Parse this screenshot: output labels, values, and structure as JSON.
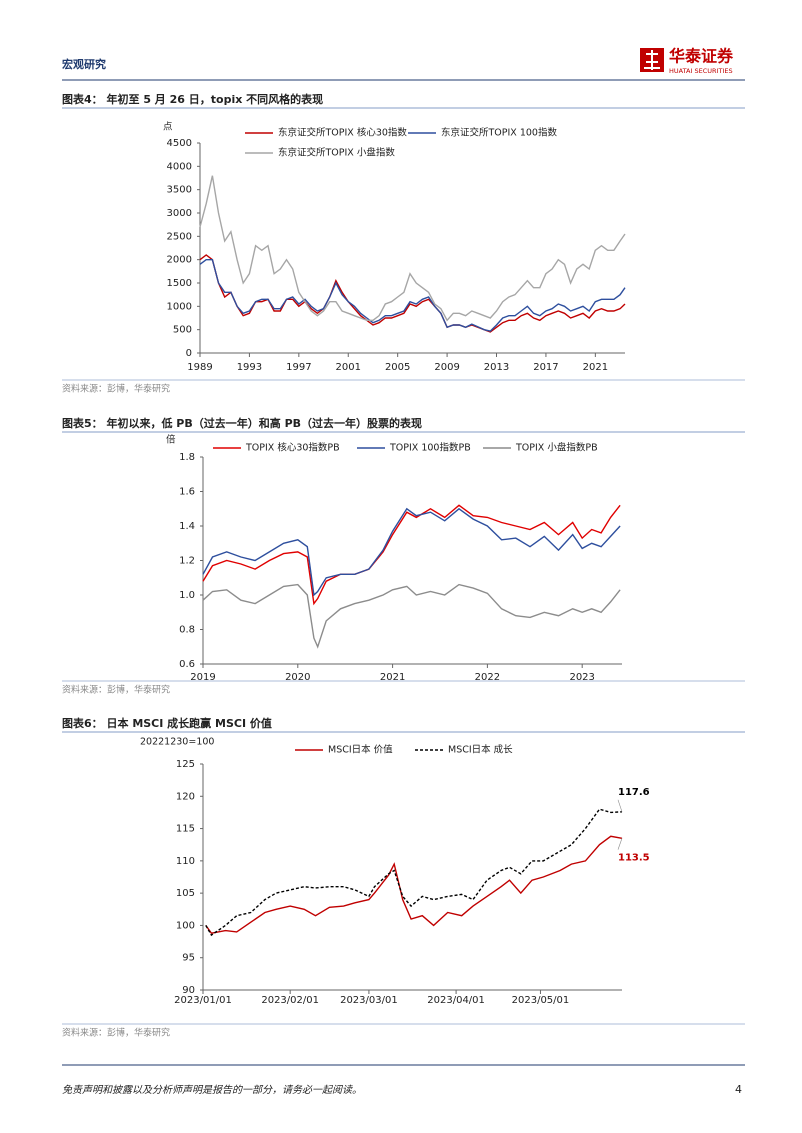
{
  "header": {
    "section": "宏观研究",
    "logo": "华泰证券",
    "logo_sub": "HUATAI SECURITIES"
  },
  "chart_data": [
    {
      "type": "line",
      "title": "图表4： 年初至 5 月 26 日，topix 不同风格的表现",
      "y_label": "点",
      "source": "资料来源：彭博，华泰研究",
      "x": [
        1989.0,
        1989.5,
        1990.0,
        1990.5,
        1991.0,
        1991.5,
        1992.0,
        1992.5,
        1993.0,
        1993.5,
        1994.0,
        1994.5,
        1995.0,
        1995.5,
        1996.0,
        1996.5,
        1997.0,
        1997.5,
        1998.0,
        1998.5,
        1999.0,
        1999.5,
        2000.0,
        2000.5,
        2001.0,
        2001.5,
        2002.0,
        2002.5,
        2003.0,
        2003.5,
        2004.0,
        2004.5,
        2005.0,
        2005.5,
        2006.0,
        2006.5,
        2007.0,
        2007.5,
        2008.0,
        2008.5,
        2009.0,
        2009.5,
        2010.0,
        2010.5,
        2011.0,
        2011.5,
        2012.0,
        2012.5,
        2013.0,
        2013.5,
        2014.0,
        2014.5,
        2015.0,
        2015.5,
        2016.0,
        2016.5,
        2017.0,
        2017.5,
        2018.0,
        2018.5,
        2019.0,
        2019.5,
        2020.0,
        2020.5,
        2021.0,
        2021.5,
        2022.0,
        2022.5,
        2023.0,
        2023.4
      ],
      "series": [
        {
          "name": "东京证交所TOPIX 核心30指数",
          "color": "#c00000",
          "values": [
            2000,
            2100,
            2000,
            1500,
            1200,
            1300,
            1000,
            800,
            850,
            1100,
            1100,
            1150,
            900,
            900,
            1150,
            1150,
            1000,
            1100,
            950,
            850,
            950,
            1200,
            1550,
            1300,
            1100,
            950,
            800,
            700,
            600,
            650,
            750,
            750,
            800,
            850,
            1050,
            1000,
            1100,
            1150,
            1000,
            850,
            550,
            600,
            600,
            550,
            600,
            550,
            500,
            450,
            550,
            650,
            700,
            700,
            800,
            850,
            750,
            700,
            800,
            850,
            900,
            850,
            750,
            800,
            850,
            750,
            900,
            950,
            900,
            900,
            950,
            1050
          ]
        },
        {
          "name": "东京证交所TOPIX 100指数",
          "color": "#2e4f9e",
          "values": [
            1900,
            2000,
            2000,
            1500,
            1300,
            1300,
            1000,
            850,
            900,
            1100,
            1150,
            1150,
            950,
            950,
            1150,
            1200,
            1050,
            1150,
            1000,
            900,
            950,
            1200,
            1500,
            1250,
            1100,
            1000,
            850,
            750,
            650,
            700,
            800,
            800,
            850,
            900,
            1100,
            1050,
            1150,
            1200,
            1000,
            850,
            550,
            600,
            600,
            550,
            620,
            560,
            500,
            470,
            600,
            750,
            800,
            800,
            900,
            1000,
            850,
            800,
            900,
            950,
            1050,
            1000,
            900,
            950,
            1000,
            900,
            1100,
            1150,
            1150,
            1150,
            1250,
            1400
          ]
        },
        {
          "name": "东京证交所TOPIX 小盘指数",
          "color": "#a6a6a6",
          "values": [
            2700,
            3200,
            3800,
            3000,
            2400,
            2600,
            2000,
            1500,
            1700,
            2300,
            2200,
            2300,
            1700,
            1800,
            2000,
            1800,
            1300,
            1100,
            900,
            800,
            900,
            1100,
            1100,
            900,
            850,
            800,
            750,
            700,
            700,
            800,
            1050,
            1100,
            1200,
            1300,
            1700,
            1500,
            1400,
            1300,
            1050,
            950,
            700,
            850,
            850,
            800,
            900,
            850,
            800,
            750,
            900,
            1100,
            1200,
            1250,
            1400,
            1550,
            1400,
            1400,
            1700,
            1800,
            2000,
            1900,
            1500,
            1800,
            1900,
            1800,
            2200,
            2300,
            2200,
            2200,
            2400,
            2550
          ]
        }
      ],
      "xlim": [
        1989,
        2023.4
      ],
      "xticks": [
        1989,
        1993,
        1997,
        2001,
        2005,
        2009,
        2013,
        2017,
        2021
      ],
      "ylim": [
        0,
        4500
      ],
      "yticks": [
        0,
        500,
        1000,
        1500,
        2000,
        2500,
        3000,
        3500,
        4000,
        4500
      ]
    },
    {
      "type": "line",
      "title": "图表5： 年初以来，低 PB（过去一年）和高 PB（过去一年）股票的表现",
      "y_label": "倍",
      "source": "资料来源：彭博，华泰研究",
      "x": [
        2019.0,
        2019.1,
        2019.25,
        2019.4,
        2019.55,
        2019.7,
        2019.85,
        2020.0,
        2020.1,
        2020.17,
        2020.21,
        2020.3,
        2020.45,
        2020.6,
        2020.75,
        2020.9,
        2021.0,
        2021.15,
        2021.25,
        2021.4,
        2021.55,
        2021.7,
        2021.85,
        2022.0,
        2022.15,
        2022.3,
        2022.45,
        2022.6,
        2022.75,
        2022.9,
        2023.0,
        2023.1,
        2023.2,
        2023.3,
        2023.4
      ],
      "series": [
        {
          "name": "TOPIX 核心30指数PB",
          "color": "#e00000",
          "values": [
            1.08,
            1.17,
            1.2,
            1.18,
            1.15,
            1.2,
            1.24,
            1.25,
            1.22,
            0.95,
            0.98,
            1.08,
            1.12,
            1.12,
            1.15,
            1.25,
            1.35,
            1.48,
            1.45,
            1.5,
            1.45,
            1.52,
            1.46,
            1.45,
            1.42,
            1.4,
            1.38,
            1.42,
            1.35,
            1.42,
            1.33,
            1.38,
            1.36,
            1.45,
            1.52
          ]
        },
        {
          "name": "TOPIX 100指数PB",
          "color": "#2e4f9e",
          "values": [
            1.12,
            1.22,
            1.25,
            1.22,
            1.2,
            1.25,
            1.3,
            1.32,
            1.28,
            1.0,
            1.02,
            1.1,
            1.12,
            1.12,
            1.15,
            1.26,
            1.37,
            1.5,
            1.46,
            1.48,
            1.43,
            1.5,
            1.44,
            1.4,
            1.32,
            1.33,
            1.28,
            1.34,
            1.26,
            1.35,
            1.27,
            1.3,
            1.28,
            1.34,
            1.4
          ]
        },
        {
          "name": "TOPIX 小盘指数PB",
          "color": "#8c8c8c",
          "values": [
            0.97,
            1.02,
            1.03,
            0.97,
            0.95,
            1.0,
            1.05,
            1.06,
            1.0,
            0.75,
            0.7,
            0.85,
            0.92,
            0.95,
            0.97,
            1.0,
            1.03,
            1.05,
            1.0,
            1.02,
            1.0,
            1.06,
            1.04,
            1.01,
            0.92,
            0.88,
            0.87,
            0.9,
            0.88,
            0.92,
            0.9,
            0.92,
            0.9,
            0.96,
            1.03
          ]
        }
      ],
      "xlim": [
        2019,
        2023.42
      ],
      "xticks": [
        2019,
        2020,
        2021,
        2022,
        2023
      ],
      "ylim": [
        0.6,
        1.8
      ],
      "yticks": [
        0.6,
        0.8,
        {
          "value": 1,
          "label": "1.0"
        },
        1.2,
        1.4,
        1.6,
        1.8
      ]
    },
    {
      "type": "line",
      "title": "图表6： 日本 MSCI 成长跑赢 MSCI 价值",
      "y_label": "20221230=100",
      "source": "资料来源：彭博，华泰研究",
      "x": [
        "2023/01/02",
        "2023/01/04",
        "2023/01/09",
        "2023/01/13",
        "2023/01/18",
        "2023/01/23",
        "2023/01/27",
        "2023/02/01",
        "2023/02/06",
        "2023/02/10",
        "2023/02/15",
        "2023/02/20",
        "2023/02/24",
        "2023/03/01",
        "2023/03/03",
        "2023/03/08",
        "2023/03/10",
        "2023/03/13",
        "2023/03/16",
        "2023/03/20",
        "2023/03/24",
        "2023/03/29",
        "2023/04/03",
        "2023/04/07",
        "2023/04/12",
        "2023/04/17",
        "2023/04/20",
        "2023/04/24",
        "2023/04/28",
        "2023/05/02",
        "2023/05/08",
        "2023/05/12",
        "2023/05/17",
        "2023/05/22",
        "2023/05/26",
        "2023/05/30"
      ],
      "series": [
        {
          "name": "MSCI日本 价值",
          "color": "#c00000",
          "style": "solid",
          "end_label": true,
          "values": [
            100,
            98.8,
            99.2,
            99,
            100.5,
            102,
            102.5,
            103,
            102.5,
            101.5,
            102.8,
            103,
            103.5,
            104,
            105,
            107.8,
            109.5,
            104,
            101,
            101.5,
            100,
            102,
            101.5,
            103,
            104.5,
            106,
            107,
            105,
            107,
            107.5,
            108.5,
            109.5,
            110,
            112.5,
            113.8,
            113.5
          ]
        },
        {
          "name": "MSCI日本 成长",
          "color": "#000000",
          "style": "dashed",
          "end_label": true,
          "values": [
            100,
            98.5,
            100,
            101.5,
            102,
            104,
            105,
            105.5,
            106,
            105.8,
            106,
            106,
            105.5,
            104.5,
            106,
            108,
            108.5,
            104.5,
            103,
            104.5,
            104,
            104.5,
            104.8,
            104,
            107,
            108.5,
            109,
            108,
            110,
            110,
            111.5,
            112.5,
            115,
            118,
            117.5,
            117.6
          ]
        }
      ],
      "xlim": [
        "2023/01/01",
        "2023/05/30"
      ],
      "xticks": [
        "2023/01/01",
        "2023/02/01",
        "2023/03/01",
        "2023/04/01",
        "2023/05/01"
      ],
      "ylim": [
        90,
        125
      ],
      "yticks": [
        90,
        95,
        100,
        105,
        110,
        115,
        120,
        125
      ]
    }
  ],
  "footer": {
    "disclaimer": "免责声明和披露以及分析师声明是报告的一部分，请务必一起阅读。",
    "page": 4
  }
}
